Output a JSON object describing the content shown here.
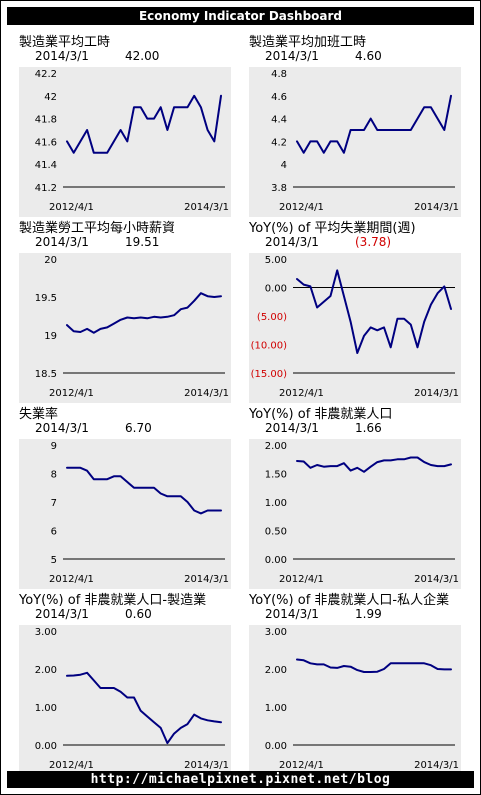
{
  "header": {
    "title": "Economy Indicator Dashboard"
  },
  "footer": {
    "url": "http://michaelpixnet.pixnet.net/blog"
  },
  "colors": {
    "line": "#000080",
    "plot_bg": "#ebebeb",
    "negative_label": "#d00000",
    "bar_bg": "#000000",
    "bar_text": "#ffffff"
  },
  "panels": [
    {
      "title": "製造業平均工時",
      "date": "2014/3/1",
      "value": "42.00",
      "x_start": "2012/4/1",
      "x_end": "2014/3/1"
    },
    {
      "title": "製造業平均加班工時",
      "date": "2014/3/1",
      "value": "4.60",
      "x_start": "2012/4/1",
      "x_end": "2014/3/1"
    },
    {
      "title": "製造業勞工平均每小時薪資",
      "date": "2014/3/1",
      "value": "19.51",
      "x_start": "2012/4/1",
      "x_end": "2014/3/1"
    },
    {
      "title": "YoY(%) of 平均失業期間(週)",
      "date": "2014/3/1",
      "value": "(3.78)",
      "value_negative": true,
      "x_start": "2012/4/1",
      "x_end": "2014/3/1"
    },
    {
      "title": "失業率",
      "date": "2014/3/1",
      "value": "6.70",
      "x_start": "2012/4/1",
      "x_end": "2014/3/1"
    },
    {
      "title": "YoY(%) of 非農就業人口",
      "date": "2014/3/1",
      "value": "1.66",
      "x_start": "2012/4/1",
      "x_end": "2014/3/1"
    },
    {
      "title": "YoY(%) of 非農就業人口-製造業",
      "date": "2014/3/1",
      "value": "0.60",
      "x_start": "2012/4/1",
      "x_end": "2014/3/1"
    },
    {
      "title": "YoY(%) of 非農就業人口-私人企業",
      "date": "2014/3/1",
      "value": "1.99",
      "x_start": "2012/4/1",
      "x_end": "2014/3/1"
    }
  ],
  "chart_data": [
    {
      "type": "line",
      "title": "製造業平均工時",
      "ylim": [
        41.2,
        42.2
      ],
      "yticks": [
        {
          "v": 41.2,
          "label": "41.2"
        },
        {
          "v": 41.4,
          "label": "41.4"
        },
        {
          "v": 41.6,
          "label": "41.6"
        },
        {
          "v": 41.8,
          "label": "41.8"
        },
        {
          "v": 42,
          "label": "42"
        },
        {
          "v": 42.2,
          "label": "42.2"
        }
      ],
      "values": [
        41.6,
        41.5,
        41.6,
        41.7,
        41.5,
        41.5,
        41.5,
        41.6,
        41.7,
        41.6,
        41.9,
        41.9,
        41.8,
        41.8,
        41.9,
        41.7,
        41.9,
        41.9,
        41.9,
        42.0,
        41.9,
        41.7,
        41.6,
        42.0
      ]
    },
    {
      "type": "line",
      "title": "製造業平均加班工時",
      "ylim": [
        3.8,
        4.8
      ],
      "yticks": [
        {
          "v": 3.8,
          "label": "3.8"
        },
        {
          "v": 4,
          "label": "4"
        },
        {
          "v": 4.2,
          "label": "4.2"
        },
        {
          "v": 4.4,
          "label": "4.4"
        },
        {
          "v": 4.6,
          "label": "4.6"
        },
        {
          "v": 4.8,
          "label": "4.8"
        }
      ],
      "values": [
        4.2,
        4.1,
        4.2,
        4.2,
        4.1,
        4.2,
        4.2,
        4.1,
        4.3,
        4.3,
        4.3,
        4.4,
        4.3,
        4.3,
        4.3,
        4.3,
        4.3,
        4.3,
        4.4,
        4.5,
        4.5,
        4.4,
        4.3,
        4.6
      ]
    },
    {
      "type": "line",
      "title": "製造業勞工平均每小時薪資",
      "ylim": [
        18.5,
        20
      ],
      "yticks": [
        {
          "v": 18.5,
          "label": "18.5"
        },
        {
          "v": 19,
          "label": "19"
        },
        {
          "v": 19.5,
          "label": "19.5"
        },
        {
          "v": 20,
          "label": "20"
        }
      ],
      "values": [
        19.13,
        19.05,
        19.04,
        19.08,
        19.03,
        19.08,
        19.1,
        19.15,
        19.2,
        19.23,
        19.22,
        19.23,
        19.22,
        19.24,
        19.23,
        19.24,
        19.26,
        19.34,
        19.36,
        19.45,
        19.55,
        19.51,
        19.5,
        19.51
      ]
    },
    {
      "type": "line",
      "title": "YoY(%) of 平均失業期間(週)",
      "ylim": [
        -15,
        5
      ],
      "zero_line": true,
      "yticks": [
        {
          "v": 5,
          "label": "5.00",
          "neg": false
        },
        {
          "v": 0,
          "label": "0.00",
          "neg": false
        },
        {
          "v": -5,
          "label": "(5.00)",
          "neg": true
        },
        {
          "v": -10,
          "label": "(10.00)",
          "neg": true
        },
        {
          "v": -15,
          "label": "(15.00)",
          "neg": true
        }
      ],
      "values": [
        1.5,
        0.5,
        0.2,
        -3.5,
        -2.5,
        -1.5,
        3,
        -1.5,
        -6,
        -11.5,
        -8.5,
        -7,
        -7.5,
        -7,
        -10.5,
        -5.5,
        -5.5,
        -6.5,
        -10.5,
        -6,
        -3,
        -1,
        0.2,
        -3.78
      ]
    },
    {
      "type": "line",
      "title": "失業率",
      "ylim": [
        5,
        9
      ],
      "yticks": [
        {
          "v": 5,
          "label": "5"
        },
        {
          "v": 6,
          "label": "6"
        },
        {
          "v": 7,
          "label": "7"
        },
        {
          "v": 8,
          "label": "8"
        },
        {
          "v": 9,
          "label": "9"
        }
      ],
      "values": [
        8.2,
        8.2,
        8.2,
        8.1,
        7.8,
        7.8,
        7.8,
        7.9,
        7.9,
        7.7,
        7.5,
        7.5,
        7.5,
        7.5,
        7.3,
        7.2,
        7.2,
        7.2,
        7.0,
        6.7,
        6.6,
        6.7,
        6.7,
        6.7
      ]
    },
    {
      "type": "line",
      "title": "YoY(%) of 非農就業人口",
      "ylim": [
        0,
        2
      ],
      "yticks": [
        {
          "v": 0,
          "label": "0.00"
        },
        {
          "v": 0.5,
          "label": "0.50"
        },
        {
          "v": 1,
          "label": "1.00"
        },
        {
          "v": 1.5,
          "label": "1.50"
        },
        {
          "v": 2,
          "label": "2.00"
        }
      ],
      "values": [
        1.72,
        1.71,
        1.6,
        1.65,
        1.62,
        1.63,
        1.63,
        1.68,
        1.55,
        1.6,
        1.53,
        1.62,
        1.7,
        1.73,
        1.73,
        1.75,
        1.75,
        1.78,
        1.78,
        1.7,
        1.65,
        1.63,
        1.63,
        1.66
      ]
    },
    {
      "type": "line",
      "title": "YoY(%) of 非農就業人口-製造業",
      "ylim": [
        0,
        3
      ],
      "yticks": [
        {
          "v": 0,
          "label": "0.00"
        },
        {
          "v": 1,
          "label": "1.00"
        },
        {
          "v": 2,
          "label": "2.00"
        },
        {
          "v": 3,
          "label": "3.00"
        }
      ],
      "values": [
        1.82,
        1.83,
        1.85,
        1.9,
        1.7,
        1.5,
        1.5,
        1.5,
        1.4,
        1.25,
        1.25,
        0.9,
        0.75,
        0.6,
        0.45,
        0.05,
        0.3,
        0.45,
        0.55,
        0.8,
        0.7,
        0.65,
        0.62,
        0.6
      ]
    },
    {
      "type": "line",
      "title": "YoY(%) of 非農就業人口-私人企業",
      "ylim": [
        0,
        3
      ],
      "yticks": [
        {
          "v": 0,
          "label": "0.00"
        },
        {
          "v": 1,
          "label": "1.00"
        },
        {
          "v": 2,
          "label": "2.00"
        },
        {
          "v": 3,
          "label": "3.00"
        }
      ],
      "values": [
        2.25,
        2.23,
        2.15,
        2.12,
        2.12,
        2.04,
        2.03,
        2.08,
        2.06,
        1.97,
        1.92,
        1.92,
        1.93,
        2.0,
        2.15,
        2.15,
        2.15,
        2.15,
        2.15,
        2.15,
        2.1,
        2.0,
        1.99,
        1.99
      ]
    }
  ]
}
